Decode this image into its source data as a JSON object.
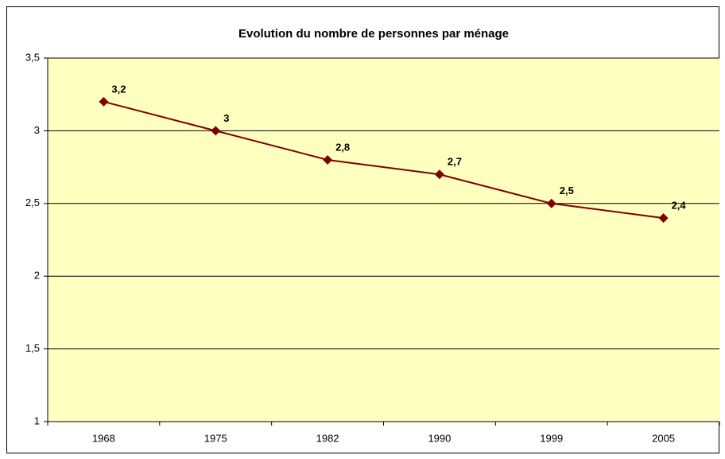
{
  "chart_data": {
    "type": "line",
    "title": "Evolution du nombre de personnes par ménage",
    "categories": [
      "1968",
      "1975",
      "1982",
      "1990",
      "1999",
      "2005"
    ],
    "values": [
      3.2,
      3,
      2.8,
      2.7,
      2.5,
      2.4
    ],
    "value_labels": [
      "3,2",
      "3",
      "2,8",
      "2,7",
      "2,5",
      "2,4"
    ],
    "color": "#800000",
    "ylim": [
      1,
      3.5
    ],
    "yticks": [
      1,
      {
        "value": 1.5,
        "label": "1,5"
      },
      2,
      {
        "value": 2.5,
        "label": "2,5"
      },
      3,
      {
        "value": 3.5,
        "label": "3,5"
      }
    ],
    "grid": true
  }
}
